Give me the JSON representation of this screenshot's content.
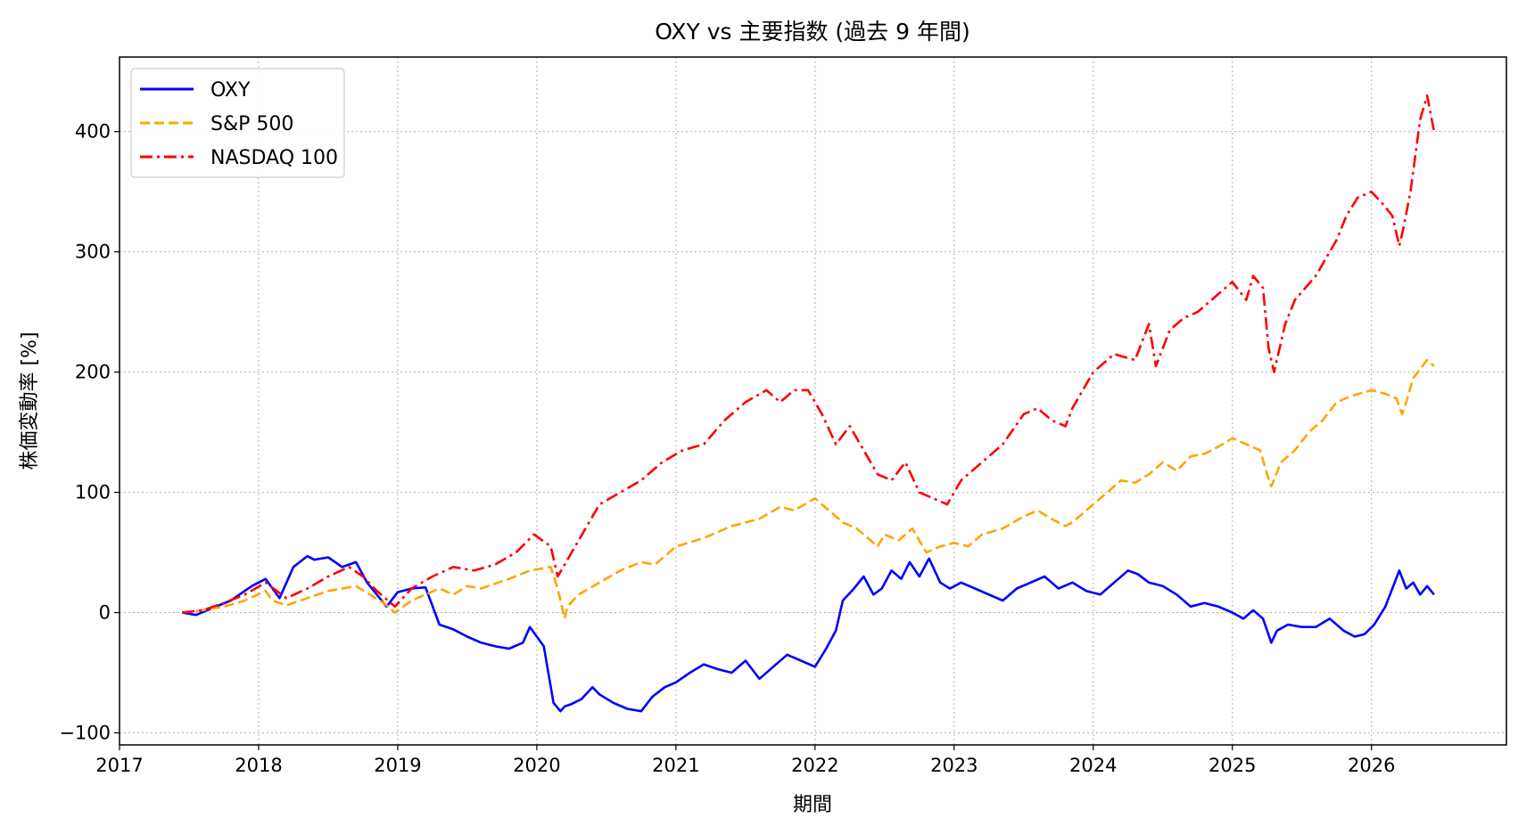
{
  "chart_data": {
    "type": "line",
    "title": "OXY vs 主要指数 (過去 9 年間)",
    "xlabel": "期間",
    "ylabel": "株価変動率 [%]",
    "xlim": [
      2017.0,
      2026.97
    ],
    "ylim": [
      -110,
      462
    ],
    "x_ticks": [
      "2017",
      "2018",
      "2019",
      "2020",
      "2021",
      "2022",
      "2023",
      "2024",
      "2025",
      "2026"
    ],
    "y_ticks": [
      -100,
      0,
      100,
      200,
      300,
      400
    ],
    "grid": true,
    "legend_position": "upper-left",
    "series": [
      {
        "name": "OXY",
        "color": "#0000ff",
        "style": "solid",
        "x": [
          2017.45,
          2017.55,
          2017.65,
          2017.8,
          2017.95,
          2018.05,
          2018.15,
          2018.25,
          2018.35,
          2018.4,
          2018.5,
          2018.6,
          2018.7,
          2018.78,
          2018.85,
          2018.92,
          2019.0,
          2019.1,
          2019.2,
          2019.3,
          2019.4,
          2019.5,
          2019.6,
          2019.7,
          2019.8,
          2019.9,
          2019.95,
          2020.05,
          2020.12,
          2020.17,
          2020.2,
          2020.25,
          2020.32,
          2020.4,
          2020.45,
          2020.55,
          2020.65,
          2020.75,
          2020.83,
          2020.92,
          2021.0,
          2021.1,
          2021.2,
          2021.3,
          2021.4,
          2021.5,
          2021.6,
          2021.7,
          2021.8,
          2021.9,
          2022.0,
          2022.08,
          2022.15,
          2022.2,
          2022.28,
          2022.35,
          2022.42,
          2022.48,
          2022.55,
          2022.62,
          2022.68,
          2022.75,
          2022.82,
          2022.9,
          2022.97,
          2023.05,
          2023.15,
          2023.25,
          2023.35,
          2023.45,
          2023.55,
          2023.65,
          2023.75,
          2023.85,
          2023.95,
          2024.05,
          2024.15,
          2024.25,
          2024.32,
          2024.4,
          2024.5,
          2024.6,
          2024.7,
          2024.8,
          2024.9,
          2025.0,
          2025.08,
          2025.15,
          2025.22,
          2025.28,
          2025.32,
          2025.4,
          2025.5,
          2025.6,
          2025.7,
          2025.8,
          2025.88,
          2025.95,
          2026.02,
          2026.1,
          2026.15,
          2026.2,
          2026.25,
          2026.3,
          2026.35,
          2026.4,
          2026.45
        ],
        "y": [
          0,
          -2,
          3,
          10,
          22,
          28,
          12,
          38,
          47,
          44,
          46,
          38,
          42,
          25,
          15,
          5,
          17,
          20,
          21,
          -10,
          -14,
          -20,
          -25,
          -28,
          -30,
          -25,
          -12,
          -28,
          -75,
          -82,
          -78,
          -76,
          -72,
          -62,
          -68,
          -75,
          -80,
          -82,
          -70,
          -62,
          -58,
          -50,
          -43,
          -47,
          -50,
          -40,
          -55,
          -45,
          -35,
          -40,
          -45,
          -30,
          -15,
          10,
          20,
          30,
          15,
          20,
          35,
          28,
          42,
          30,
          45,
          25,
          20,
          25,
          20,
          15,
          10,
          20,
          25,
          30,
          20,
          25,
          18,
          15,
          25,
          35,
          32,
          25,
          22,
          15,
          5,
          8,
          5,
          0,
          -5,
          2,
          -5,
          -25,
          -15,
          -10,
          -12,
          -12,
          -5,
          -15,
          -20,
          -18,
          -10,
          5,
          20,
          35,
          20,
          25,
          15,
          22,
          15
        ]
      },
      {
        "name": "S&P 500",
        "color": "#ffa500",
        "style": "dashed",
        "x": [
          2017.45,
          2017.6,
          2017.75,
          2017.9,
          2018.05,
          2018.1,
          2018.2,
          2018.35,
          2018.5,
          2018.7,
          2018.8,
          2018.9,
          2018.98,
          2019.1,
          2019.3,
          2019.4,
          2019.5,
          2019.6,
          2019.8,
          2019.95,
          2020.1,
          2020.15,
          2020.2,
          2020.22,
          2020.3,
          2020.45,
          2020.6,
          2020.75,
          2020.85,
          2021.0,
          2021.2,
          2021.4,
          2021.6,
          2021.75,
          2021.85,
          2022.0,
          2022.1,
          2022.2,
          2022.3,
          2022.45,
          2022.5,
          2022.6,
          2022.7,
          2022.8,
          2022.9,
          2023.0,
          2023.1,
          2023.2,
          2023.35,
          2023.5,
          2023.6,
          2023.7,
          2023.8,
          2023.85,
          2023.95,
          2024.1,
          2024.2,
          2024.3,
          2024.4,
          2024.5,
          2024.6,
          2024.7,
          2024.8,
          2024.9,
          2025.0,
          2025.1,
          2025.2,
          2025.25,
          2025.28,
          2025.35,
          2025.45,
          2025.55,
          2025.65,
          2025.75,
          2025.85,
          2026.0,
          2026.1,
          2026.18,
          2026.22,
          2026.25,
          2026.3,
          2026.4,
          2026.45
        ],
        "y": [
          0,
          2,
          5,
          10,
          18,
          10,
          6,
          12,
          18,
          22,
          15,
          8,
          0,
          10,
          20,
          15,
          22,
          20,
          28,
          35,
          38,
          20,
          -5,
          5,
          15,
          25,
          35,
          42,
          40,
          55,
          62,
          72,
          78,
          88,
          85,
          95,
          85,
          75,
          70,
          55,
          65,
          60,
          70,
          50,
          55,
          58,
          55,
          65,
          70,
          80,
          85,
          78,
          72,
          75,
          85,
          100,
          110,
          108,
          115,
          125,
          118,
          130,
          132,
          138,
          145,
          140,
          135,
          115,
          105,
          125,
          135,
          150,
          160,
          175,
          180,
          185,
          182,
          178,
          165,
          175,
          195,
          210,
          205
        ]
      },
      {
        "name": "NASDAQ 100",
        "color": "#ff0000",
        "style": "dashdot",
        "x": [
          2017.45,
          2017.6,
          2017.75,
          2017.9,
          2018.05,
          2018.2,
          2018.35,
          2018.5,
          2018.65,
          2018.75,
          2018.85,
          2018.98,
          2019.1,
          2019.25,
          2019.4,
          2019.55,
          2019.7,
          2019.85,
          2019.98,
          2020.1,
          2020.15,
          2020.2,
          2020.3,
          2020.45,
          2020.6,
          2020.75,
          2020.9,
          2021.05,
          2021.2,
          2021.35,
          2021.5,
          2021.65,
          2021.75,
          2021.85,
          2021.95,
          2022.05,
          2022.15,
          2022.25,
          2022.35,
          2022.45,
          2022.55,
          2022.65,
          2022.75,
          2022.85,
          2022.95,
          2023.05,
          2023.2,
          2023.35,
          2023.5,
          2023.6,
          2023.7,
          2023.8,
          2023.85,
          2024.0,
          2024.15,
          2024.3,
          2024.4,
          2024.45,
          2024.55,
          2024.65,
          2024.75,
          2024.9,
          2025.0,
          2025.1,
          2025.15,
          2025.22,
          2025.26,
          2025.3,
          2025.38,
          2025.45,
          2025.6,
          2025.75,
          2025.82,
          2025.9,
          2026.0,
          2026.08,
          2026.15,
          2026.2,
          2026.23,
          2026.28,
          2026.35,
          2026.4,
          2026.45
        ],
        "y": [
          0,
          2,
          8,
          15,
          25,
          12,
          20,
          30,
          38,
          30,
          18,
          5,
          20,
          30,
          38,
          35,
          40,
          50,
          65,
          55,
          30,
          40,
          60,
          90,
          100,
          110,
          125,
          135,
          140,
          160,
          175,
          185,
          175,
          185,
          185,
          165,
          140,
          155,
          135,
          115,
          110,
          125,
          100,
          95,
          90,
          110,
          125,
          140,
          165,
          170,
          160,
          155,
          170,
          200,
          215,
          210,
          240,
          205,
          235,
          245,
          250,
          265,
          275,
          260,
          280,
          270,
          220,
          200,
          240,
          260,
          280,
          310,
          330,
          345,
          350,
          340,
          330,
          305,
          320,
          350,
          410,
          430,
          400
        ]
      }
    ]
  }
}
